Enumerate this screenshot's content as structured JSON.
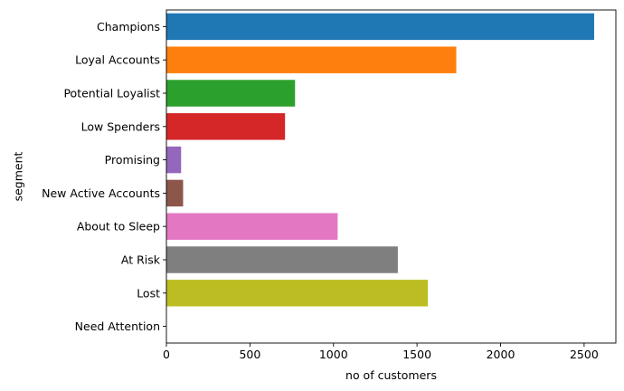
{
  "chart_data": {
    "type": "bar",
    "orientation": "horizontal",
    "categories": [
      "Champions",
      "Loyal Accounts",
      "Potential Loyalist",
      "Low Spenders",
      "Promising",
      "New Active Accounts",
      "About to Sleep",
      "At Risk",
      "Lost",
      "Need Attention"
    ],
    "values": [
      2560,
      1735,
      770,
      710,
      88,
      100,
      1025,
      1385,
      1565,
      0
    ],
    "colors": [
      "#1f77b4",
      "#ff7f0e",
      "#2ca02c",
      "#d62728",
      "#9467bd",
      "#8c564b",
      "#e377c2",
      "#7f7f7f",
      "#bcbd22",
      "#17becf"
    ],
    "xlabel": "no of customers",
    "ylabel": "segment",
    "xlim": [
      0,
      2690
    ],
    "xticks": [
      0,
      500,
      1000,
      1500,
      2000,
      2500
    ],
    "grid": false
  }
}
